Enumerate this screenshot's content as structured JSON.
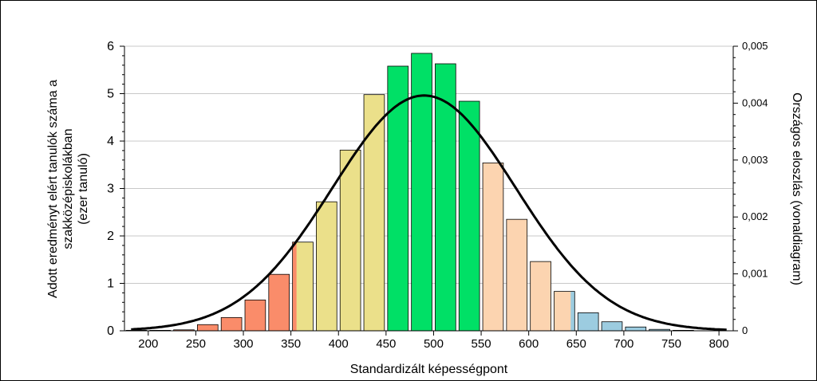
{
  "chart_data": {
    "type": "bar",
    "xlabel": "Standardizált képességpont",
    "ylabel_lines": [
      "Adott eredményt elért tanulók száma a",
      "szakközépiskolákban",
      "(ezer tanuló)"
    ],
    "y2label": "Országos eloszlás (vonaldiagram)",
    "xlim": [
      175,
      815
    ],
    "ylim": [
      0,
      6
    ],
    "y2lim": [
      0,
      0.005
    ],
    "x_ticks": [
      200,
      250,
      300,
      350,
      400,
      450,
      500,
      550,
      600,
      650,
      700,
      750,
      800
    ],
    "y_ticks": [
      0,
      1,
      2,
      3,
      4,
      5,
      6
    ],
    "y_tick_labels": [
      "0",
      "1",
      "2",
      "3",
      "4",
      "5",
      "6"
    ],
    "y2_ticks": [
      0,
      0.001,
      0.002,
      0.003,
      0.004,
      0.005
    ],
    "y2_tick_labels": [
      "0",
      "0,001",
      "0,002",
      "0,003",
      "0,004",
      "0,005"
    ],
    "grid": true,
    "bin_width": 25,
    "colors": {
      "red": "#fa8c6a",
      "yellow": "#ebe08a",
      "green": "#00e066",
      "peach": "#fcd4b0",
      "blue": "#9ccce0",
      "curve": "#000000",
      "grid": "#c8c8c8"
    },
    "bars": [
      {
        "x": 187.5,
        "value": 0.01,
        "fill": "red"
      },
      {
        "x": 212.5,
        "value": 0.01,
        "fill": "red"
      },
      {
        "x": 237.5,
        "value": 0.02,
        "fill": "red"
      },
      {
        "x": 262.5,
        "value": 0.13,
        "fill": "red"
      },
      {
        "x": 287.5,
        "value": 0.28,
        "fill": "red"
      },
      {
        "x": 312.5,
        "value": 0.65,
        "fill": "red"
      },
      {
        "x": 337.5,
        "value": 1.19,
        "fill": "red"
      },
      {
        "x": 362.5,
        "value": 1.87,
        "fill": "yellow",
        "edge_fill": "red"
      },
      {
        "x": 387.5,
        "value": 2.72,
        "fill": "yellow"
      },
      {
        "x": 412.5,
        "value": 3.81,
        "fill": "yellow"
      },
      {
        "x": 437.5,
        "value": 4.98,
        "fill": "yellow"
      },
      {
        "x": 462.5,
        "value": 5.58,
        "fill": "green"
      },
      {
        "x": 487.5,
        "value": 5.85,
        "fill": "green"
      },
      {
        "x": 512.5,
        "value": 5.63,
        "fill": "green"
      },
      {
        "x": 537.5,
        "value": 4.84,
        "fill": "green"
      },
      {
        "x": 562.5,
        "value": 3.54,
        "fill": "peach"
      },
      {
        "x": 587.5,
        "value": 2.35,
        "fill": "peach"
      },
      {
        "x": 612.5,
        "value": 1.46,
        "fill": "peach"
      },
      {
        "x": 637.5,
        "value": 0.83,
        "fill": "peach",
        "edge_fill": "blue"
      },
      {
        "x": 662.5,
        "value": 0.38,
        "fill": "blue"
      },
      {
        "x": 687.5,
        "value": 0.19,
        "fill": "blue"
      },
      {
        "x": 712.5,
        "value": 0.08,
        "fill": "blue"
      },
      {
        "x": 737.5,
        "value": 0.03,
        "fill": "blue"
      },
      {
        "x": 762.5,
        "value": 0.01,
        "fill": "blue"
      }
    ],
    "curve": {
      "type": "normal",
      "mean": 490,
      "sd": 96.5,
      "range": [
        182,
        808
      ]
    }
  }
}
